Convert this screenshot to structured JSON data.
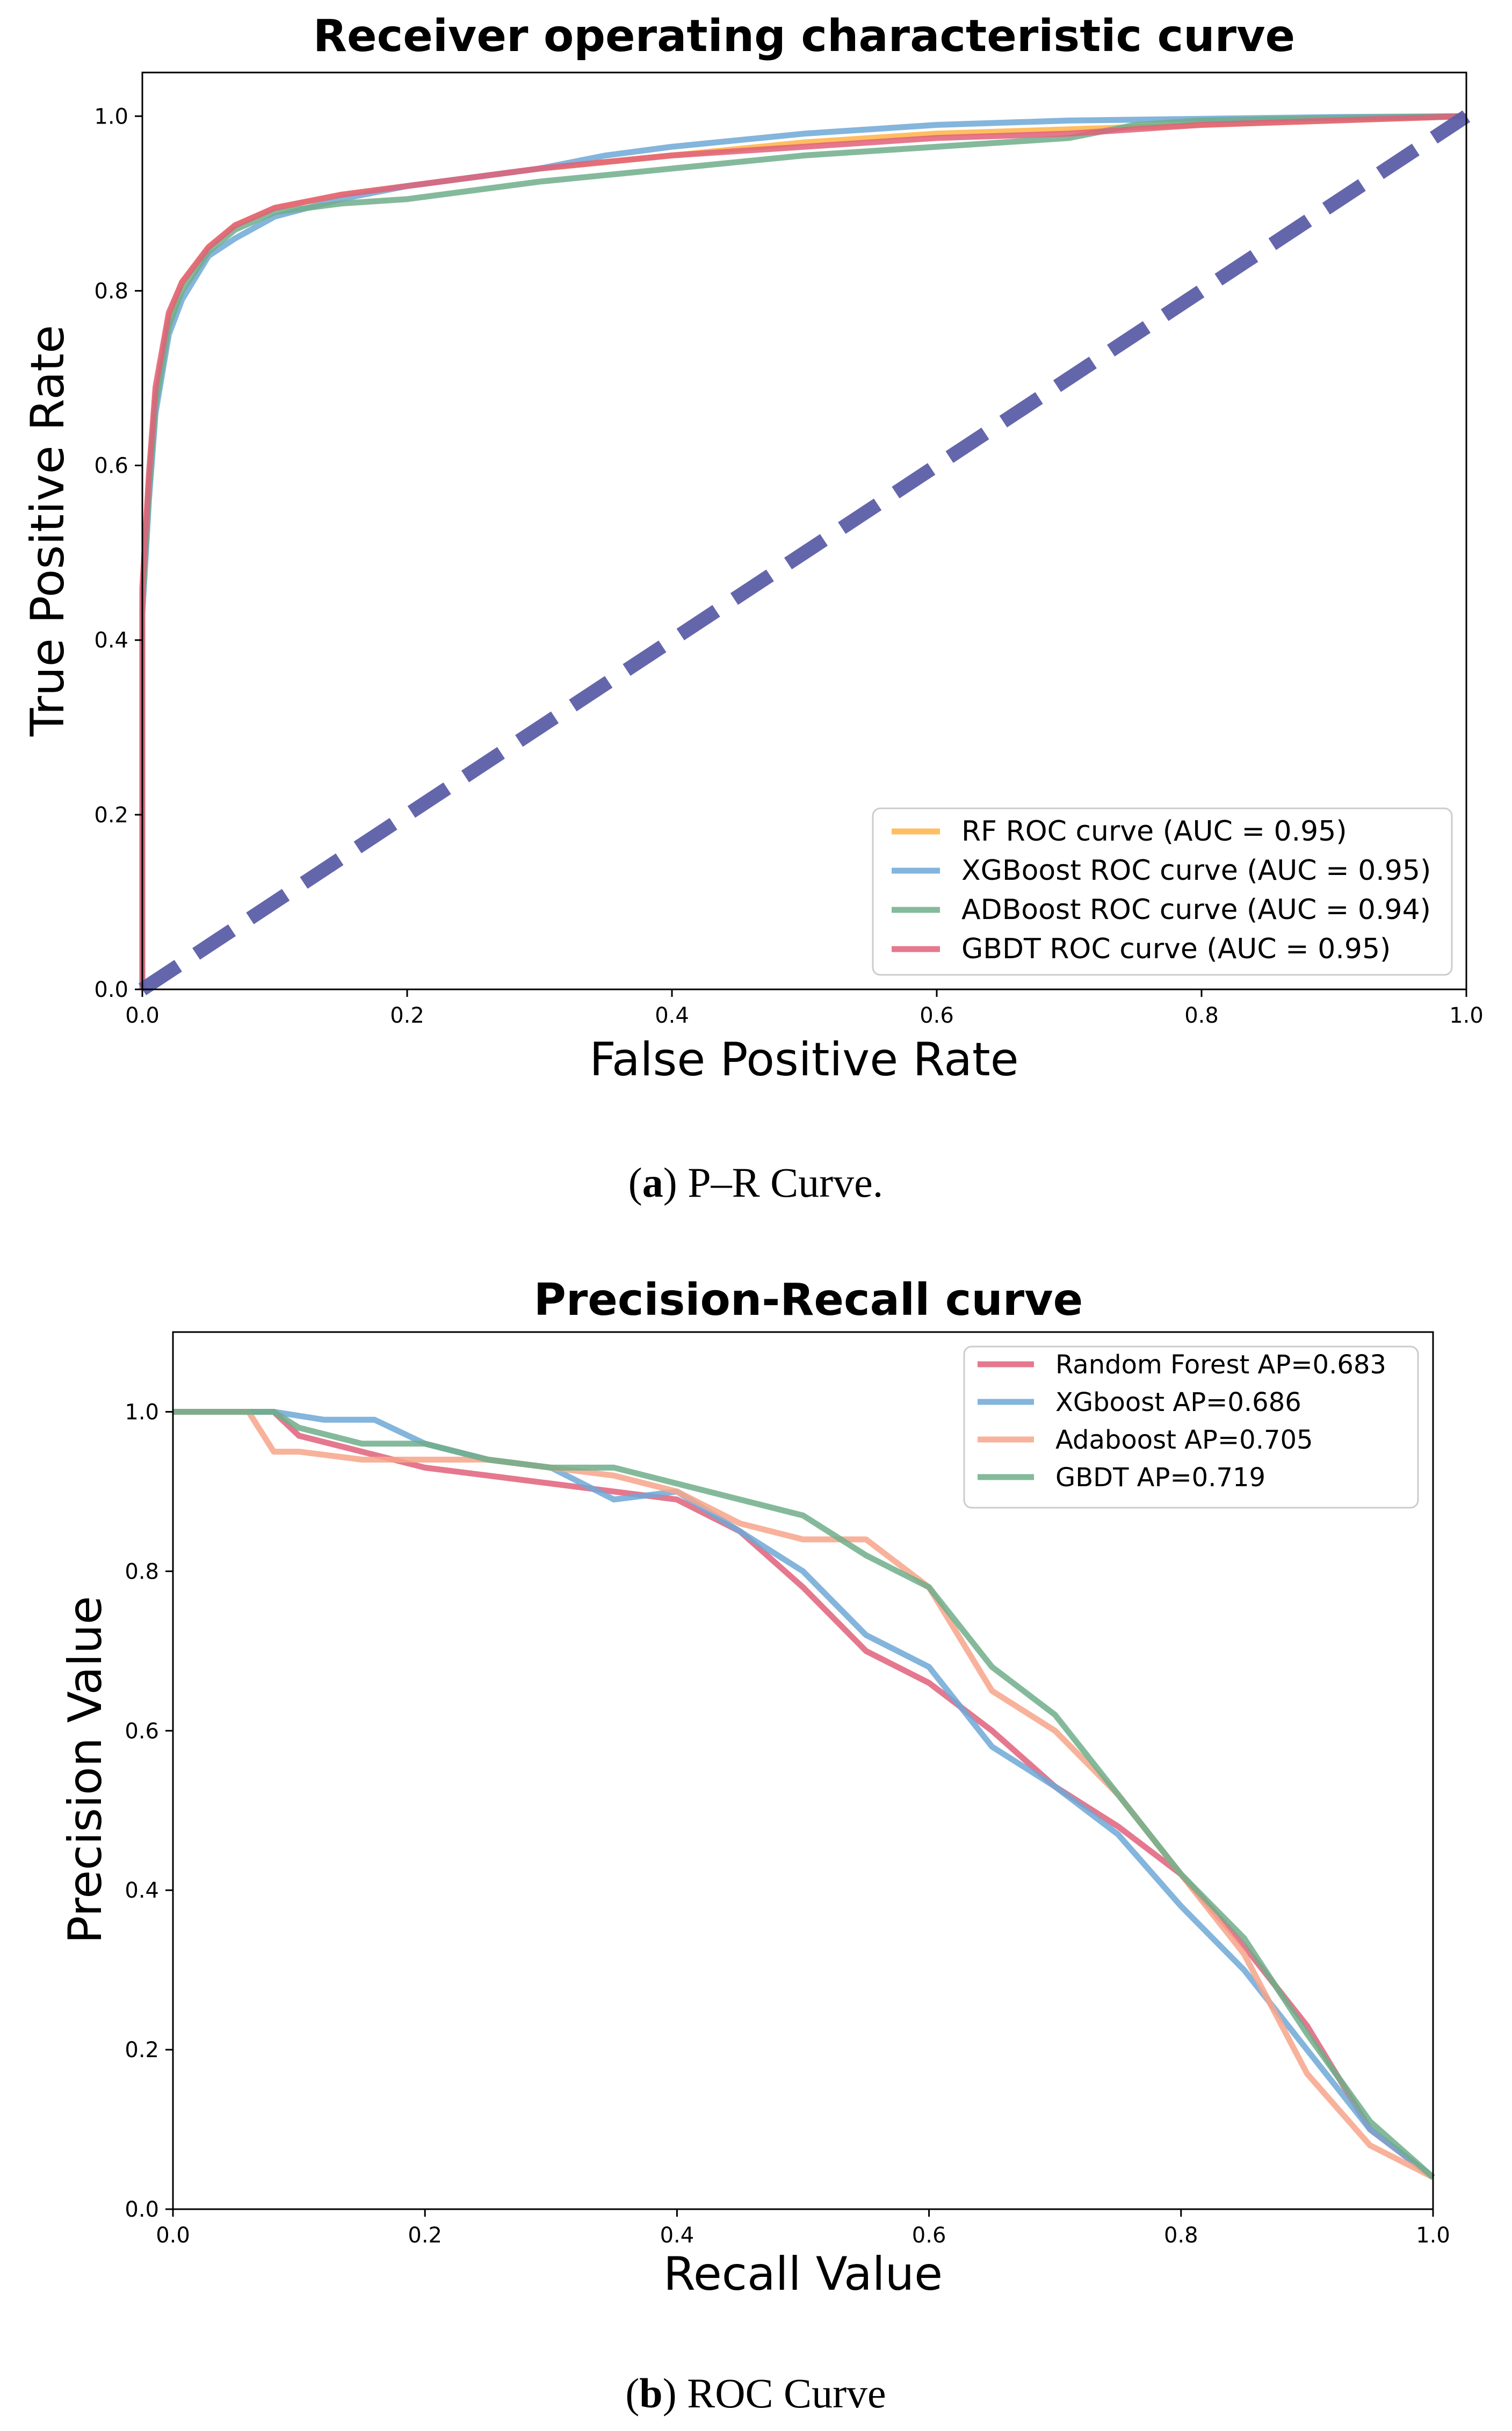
{
  "chart_data": [
    {
      "type": "line",
      "title": "Receiver operating characteristic curve",
      "xlabel": "False Positive Rate",
      "ylabel": "True Positive Rate",
      "xlim": [
        0.0,
        1.0
      ],
      "ylim": [
        0.0,
        1.05
      ],
      "xticks": [
        "0.0",
        "0.2",
        "0.4",
        "0.6",
        "0.8",
        "1.0"
      ],
      "yticks": [
        "0.0",
        "0.2",
        "0.4",
        "0.6",
        "0.8",
        "1.0"
      ],
      "legend_position": "lower-right",
      "caption": {
        "letter": "a",
        "text": ") P–R Curve.",
        "open": "("
      },
      "series": [
        {
          "name": "RF ROC curve (AUC = 0.95)",
          "color": "#ffb347",
          "x": [
            0,
            0.0,
            0.005,
            0.01,
            0.02,
            0.03,
            0.05,
            0.07,
            0.1,
            0.15,
            0.2,
            0.3,
            0.4,
            0.5,
            0.6,
            0.7,
            0.8,
            0.9,
            1.0
          ],
          "y": [
            0,
            0.45,
            0.58,
            0.68,
            0.77,
            0.81,
            0.85,
            0.875,
            0.895,
            0.91,
            0.92,
            0.94,
            0.955,
            0.97,
            0.98,
            0.985,
            0.99,
            0.995,
            1.0
          ]
        },
        {
          "name": "XGBoost ROC curve (AUC = 0.95)",
          "color": "#6fa8d6",
          "x": [
            0,
            0.0,
            0.005,
            0.01,
            0.02,
            0.03,
            0.05,
            0.07,
            0.1,
            0.15,
            0.2,
            0.3,
            0.35,
            0.4,
            0.5,
            0.6,
            0.7,
            0.8,
            0.9,
            1.0
          ],
          "y": [
            0,
            0.43,
            0.56,
            0.66,
            0.75,
            0.79,
            0.84,
            0.86,
            0.885,
            0.905,
            0.92,
            0.94,
            0.955,
            0.965,
            0.98,
            0.99,
            0.995,
            0.997,
            0.999,
            1.0
          ]
        },
        {
          "name": "ADBoost ROC curve (AUC = 0.94)",
          "color": "#6fae8a",
          "x": [
            0,
            0.0,
            0.005,
            0.01,
            0.02,
            0.03,
            0.05,
            0.07,
            0.1,
            0.15,
            0.2,
            0.3,
            0.4,
            0.5,
            0.6,
            0.7,
            0.75,
            0.8,
            0.9,
            1.0
          ],
          "y": [
            0,
            0.44,
            0.57,
            0.67,
            0.76,
            0.8,
            0.845,
            0.87,
            0.89,
            0.9,
            0.905,
            0.925,
            0.94,
            0.955,
            0.965,
            0.975,
            0.99,
            0.995,
            0.998,
            1.0
          ]
        },
        {
          "name": "GBDT ROC curve (AUC = 0.95)",
          "color": "#e0607a",
          "x": [
            0,
            0.0,
            0.005,
            0.01,
            0.02,
            0.03,
            0.05,
            0.07,
            0.1,
            0.15,
            0.2,
            0.3,
            0.4,
            0.5,
            0.6,
            0.7,
            0.8,
            0.9,
            1.0
          ],
          "y": [
            0,
            0.46,
            0.59,
            0.69,
            0.775,
            0.81,
            0.85,
            0.875,
            0.895,
            0.91,
            0.92,
            0.94,
            0.955,
            0.965,
            0.975,
            0.98,
            0.99,
            0.995,
            1.0
          ]
        },
        {
          "name": "chance",
          "color": "#5c5ea8",
          "dashed": true,
          "x": [
            0,
            1.0
          ],
          "y": [
            0,
            1.0
          ]
        }
      ]
    },
    {
      "type": "line",
      "title": "Precision-Recall curve",
      "xlabel": "Recall Value",
      "ylabel": "Precision Value",
      "xlim": [
        0.0,
        1.0
      ],
      "ylim": [
        0.0,
        1.1
      ],
      "xticks": [
        "0.0",
        "0.2",
        "0.4",
        "0.6",
        "0.8",
        "1.0"
      ],
      "yticks": [
        "0.0",
        "0.2",
        "0.4",
        "0.6",
        "0.8",
        "1.0"
      ],
      "legend_position": "upper-right",
      "caption": {
        "letter": "b",
        "text": ") ROC Curve",
        "open": "("
      },
      "series": [
        {
          "name": "Random Forest AP=0.683",
          "color": "#e0607a",
          "x": [
            0,
            0.08,
            0.1,
            0.15,
            0.2,
            0.25,
            0.3,
            0.35,
            0.4,
            0.45,
            0.5,
            0.55,
            0.6,
            0.65,
            0.7,
            0.75,
            0.8,
            0.85,
            0.9,
            0.95,
            1.0
          ],
          "y": [
            1.0,
            1.0,
            0.97,
            0.95,
            0.93,
            0.92,
            0.91,
            0.9,
            0.89,
            0.85,
            0.78,
            0.7,
            0.66,
            0.6,
            0.53,
            0.48,
            0.42,
            0.33,
            0.23,
            0.1,
            0.04
          ]
        },
        {
          "name": "XGboost AP=0.686",
          "color": "#6fa8d6",
          "x": [
            0,
            0.08,
            0.12,
            0.16,
            0.2,
            0.25,
            0.3,
            0.35,
            0.4,
            0.45,
            0.5,
            0.55,
            0.6,
            0.65,
            0.7,
            0.75,
            0.8,
            0.85,
            0.9,
            0.95,
            1.0
          ],
          "y": [
            1.0,
            1.0,
            0.99,
            0.99,
            0.96,
            0.94,
            0.93,
            0.89,
            0.9,
            0.85,
            0.8,
            0.72,
            0.68,
            0.58,
            0.53,
            0.47,
            0.38,
            0.3,
            0.2,
            0.1,
            0.04
          ]
        },
        {
          "name": "Adaboost AP=0.705",
          "color": "#f7a58a",
          "x": [
            0,
            0.06,
            0.08,
            0.1,
            0.15,
            0.2,
            0.25,
            0.3,
            0.35,
            0.4,
            0.45,
            0.5,
            0.55,
            0.6,
            0.65,
            0.7,
            0.75,
            0.8,
            0.85,
            0.9,
            0.95,
            1.0
          ],
          "y": [
            1.0,
            1.0,
            0.95,
            0.95,
            0.94,
            0.94,
            0.94,
            0.93,
            0.92,
            0.9,
            0.86,
            0.84,
            0.84,
            0.78,
            0.65,
            0.6,
            0.52,
            0.42,
            0.32,
            0.17,
            0.08,
            0.04
          ]
        },
        {
          "name": "GBDT AP=0.719",
          "color": "#6fae8a",
          "x": [
            0,
            0.08,
            0.1,
            0.15,
            0.2,
            0.25,
            0.3,
            0.35,
            0.4,
            0.45,
            0.5,
            0.55,
            0.6,
            0.65,
            0.7,
            0.75,
            0.8,
            0.85,
            0.9,
            0.95,
            1.0
          ],
          "y": [
            1.0,
            1.0,
            0.98,
            0.96,
            0.96,
            0.94,
            0.93,
            0.93,
            0.91,
            0.89,
            0.87,
            0.82,
            0.78,
            0.68,
            0.62,
            0.52,
            0.42,
            0.34,
            0.22,
            0.11,
            0.04
          ]
        }
      ]
    }
  ]
}
